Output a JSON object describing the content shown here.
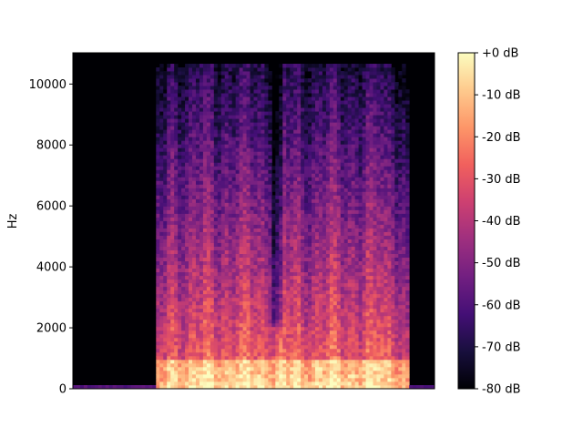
{
  "chart_data": [
    {
      "type": "heatmap",
      "title": "",
      "xlabel": "",
      "ylabel": "Hz",
      "ylim": [
        0,
        11025
      ],
      "yticks": [
        0,
        2000,
        4000,
        6000,
        8000,
        10000
      ],
      "x_ticks_shown": false,
      "x_extent_fraction": [
        0,
        1
      ],
      "signal": {
        "onset_fraction": 0.23,
        "offset_fraction": 0.93,
        "max_frequency_hz": 10700,
        "low_band_energy_hz": [
          0,
          1000
        ]
      }
    },
    {
      "type": "colorbar",
      "colormap": "magma",
      "range_db": [
        -80,
        0
      ],
      "tick_values": [
        0,
        -10,
        -20,
        -30,
        -40,
        -50,
        -60,
        -70,
        -80
      ],
      "tick_labels": [
        "+0 dB",
        "-10 dB",
        "-20 dB",
        "-30 dB",
        "-40 dB",
        "-50 dB",
        "-60 dB",
        "-70 dB",
        "-80 dB"
      ]
    }
  ],
  "colors": {
    "background": "#000004",
    "magma_stops": [
      "#000004",
      "#180f3d",
      "#440f76",
      "#721f81",
      "#9e2f7f",
      "#cd4071",
      "#f1605d",
      "#fd9668",
      "#feca8d",
      "#fcfdbf"
    ]
  }
}
